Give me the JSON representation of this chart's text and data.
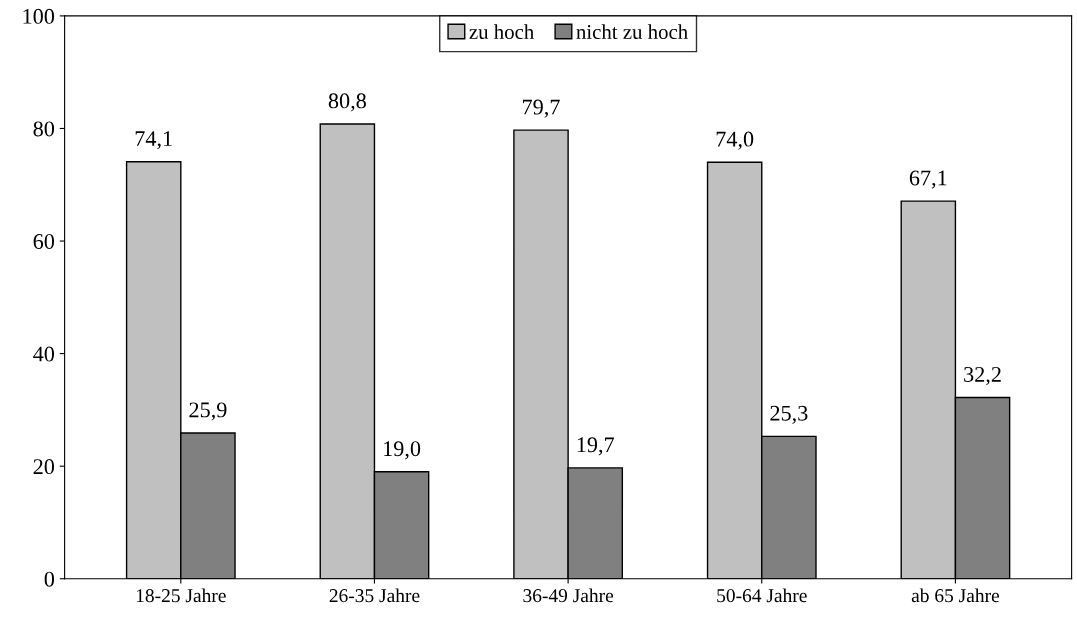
{
  "chart_data": {
    "type": "bar",
    "categories": [
      "18-25 Jahre",
      "26-35 Jahre",
      "36-49 Jahre",
      "50-64 Jahre",
      "ab 65 Jahre"
    ],
    "series": [
      {
        "name": "zu hoch",
        "color": "#c0c0c0",
        "values": [
          74.1,
          80.8,
          79.7,
          74.0,
          67.1
        ],
        "value_labels": [
          "74,1",
          "80,8",
          "79,7",
          "74,0",
          "67,1"
        ]
      },
      {
        "name": "nicht zu hoch",
        "color": "#808080",
        "values": [
          25.9,
          19.0,
          19.7,
          25.3,
          32.2
        ],
        "value_labels": [
          "25,9",
          "19,0",
          "19,7",
          "25,3",
          "32,2"
        ]
      }
    ],
    "ylim": [
      0,
      100
    ],
    "yticks": [
      0,
      20,
      40,
      60,
      80,
      100
    ],
    "grid": false,
    "legend": "top"
  }
}
